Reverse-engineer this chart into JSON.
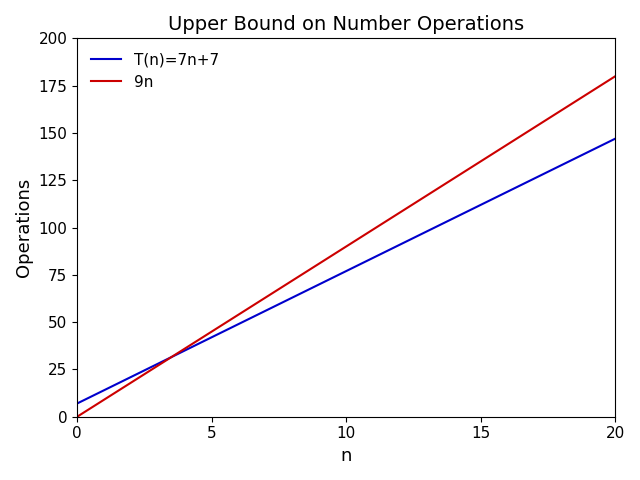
{
  "title": "Upper Bound on Number Operations",
  "xlabel": "n",
  "ylabel": "Operations",
  "xlim": [
    0,
    20
  ],
  "ylim": [
    0,
    200
  ],
  "xticks": [
    0,
    5,
    10,
    15,
    20
  ],
  "yticks": [
    0,
    25,
    50,
    75,
    100,
    125,
    150,
    175,
    200
  ],
  "line1_label": "T(n)=7n+7",
  "line1_color": "#0000cc",
  "line1_slope": 7,
  "line1_intercept": 7,
  "line2_label": "9n",
  "line2_color": "#cc0000",
  "line2_slope": 9,
  "line2_intercept": 0,
  "n_points": 1000,
  "n_start": 0,
  "n_end": 20,
  "title_fontsize": 14,
  "axis_label_fontsize": 13,
  "tick_fontsize": 11,
  "legend_fontsize": 11,
  "line_width": 1.5,
  "background_color": "#ffffff",
  "legend_loc": "upper left"
}
